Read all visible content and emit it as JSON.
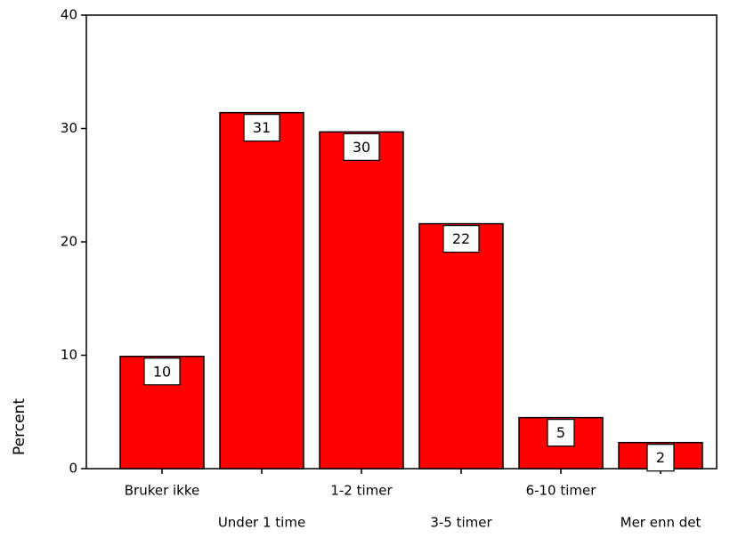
{
  "chart_data": {
    "type": "bar",
    "y_label": "Percent",
    "categories": [
      "Bruker ikke",
      "Under 1 time",
      "1-2 timer",
      "3-5 timer",
      "6-10 timer",
      "Mer enn det"
    ],
    "values": [
      9.9,
      31.4,
      29.7,
      21.6,
      4.5,
      2.3
    ],
    "value_labels": [
      "10",
      "31",
      "30",
      "22",
      "5",
      "2"
    ],
    "color": "#ff0000",
    "ylim": [
      0,
      40
    ],
    "yticks": [
      0,
      10,
      20,
      30,
      40
    ],
    "grid": false
  }
}
